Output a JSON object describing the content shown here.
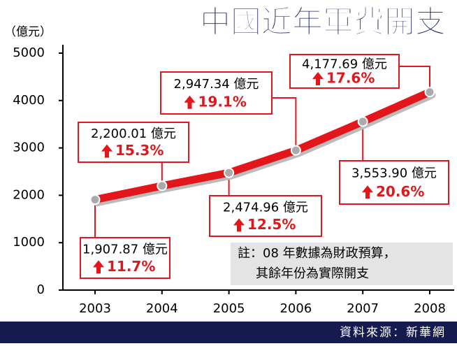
{
  "chart_data": {
    "type": "line",
    "title": "中國近年軍費開支",
    "y_label": "（億元）",
    "categories": [
      "2003",
      "2004",
      "2005",
      "2006",
      "2007",
      "2008"
    ],
    "series": [
      {
        "color": "#e2161b",
        "values": [
          1907.87,
          2200.01,
          2474.96,
          2947.34,
          3553.9,
          4177.69
        ],
        "value_labels": [
          "1,907.87 億元",
          "2,200.01 億元",
          "2,474.96 億元",
          "2,947.34 億元",
          "3,553.90 億元",
          "4,177.69 億元"
        ],
        "growth_labels": [
          "11.7%",
          "15.3%",
          "12.5%",
          "19.1%",
          "20.6%",
          "17.6%"
        ]
      }
    ],
    "ylim": [
      0,
      5000
    ],
    "yticks": [
      0,
      1000,
      2000,
      3000,
      4000,
      5000
    ],
    "note": [
      "註：08 年數據為財政預算，",
      "其餘年份為實際開支"
    ],
    "source": "資料來源：新華網"
  }
}
